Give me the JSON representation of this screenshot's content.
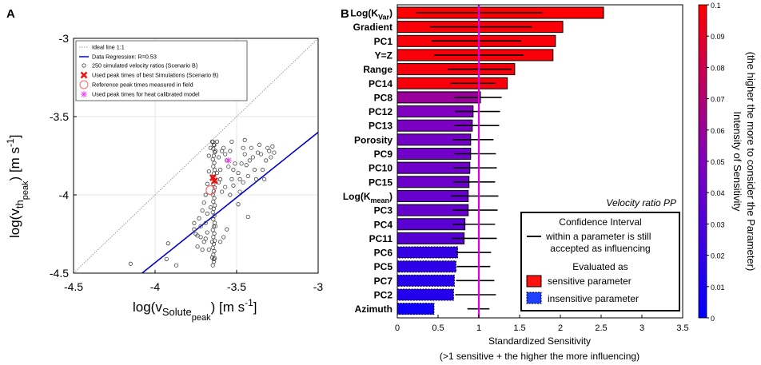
{
  "chart_data": [
    {
      "panel": "A",
      "type": "scatter",
      "xlabel": {
        "main": "log(v",
        "sub": "Solute",
        "subsub": "peak",
        "unit": ") [m s",
        "exp": "-1",
        "close": "]"
      },
      "ylabel": {
        "main": "log(v",
        "sub": "th",
        "subsub": "peak",
        "unit": ") [m s",
        "exp": "-1",
        "close": "]"
      },
      "xlim": [
        -4.5,
        -3
      ],
      "ylim": [
        -4.5,
        -3
      ],
      "xticks": [
        "-4.5",
        "-4",
        "-3.5",
        "-3"
      ],
      "yticks": [
        "-4.5",
        "-4",
        "-3.5",
        "-3"
      ],
      "grid": true,
      "legend_position": "top-left",
      "legend": [
        {
          "label": "Ideal line 1:1",
          "marker": "dotted-line",
          "color": "#999999"
        },
        {
          "label": "Data Regression: R=0.53",
          "marker": "line",
          "color": "#0000cc"
        },
        {
          "label": "250 simulated velocity ratios (Scenario B)",
          "marker": "circle",
          "color": "#444444"
        },
        {
          "label": "Used peak times of best Simulations (Scenario B)",
          "marker": "x",
          "color": "#ee1111"
        },
        {
          "label": "Reference peak times measured in field",
          "marker": "circle-large",
          "color": "#ff6666"
        },
        {
          "label": "Used peak times for heat calibrated model",
          "marker": "star",
          "color": "#ee44ee"
        }
      ],
      "ideal_line": {
        "x": [
          -4.5,
          -3
        ],
        "y": [
          -4.5,
          -3
        ]
      },
      "regression_line": {
        "x": [
          -4.08,
          -3
        ],
        "y": [
          -4.5,
          -3.6
        ]
      },
      "reference_point": {
        "x": -3.66,
        "y": -3.97
      },
      "best_sim_points": [
        {
          "x": -3.645,
          "y": -3.89
        },
        {
          "x": -3.635,
          "y": -3.91
        }
      ],
      "heat_point": {
        "x": -3.55,
        "y": -3.78
      },
      "scatter_points": [
        [
          -4.15,
          -4.44
        ],
        [
          -3.93,
          -4.41
        ],
        [
          -3.87,
          -4.45
        ],
        [
          -3.92,
          -4.31
        ],
        [
          -3.74,
          -4.33
        ],
        [
          -3.76,
          -4.18
        ],
        [
          -3.76,
          -4.22
        ],
        [
          -3.75,
          -4.25
        ],
        [
          -3.74,
          -4.26
        ],
        [
          -3.72,
          -4.2
        ],
        [
          -3.72,
          -4.27
        ],
        [
          -3.7,
          -4.3
        ],
        [
          -3.69,
          -4.18
        ],
        [
          -3.68,
          -4.24
        ],
        [
          -3.67,
          -4.35
        ],
        [
          -3.65,
          -4.4
        ],
        [
          -3.64,
          -4.41
        ],
        [
          -3.71,
          -4.1
        ],
        [
          -3.7,
          -4.05
        ],
        [
          -3.69,
          -4.0
        ],
        [
          -3.68,
          -3.93
        ],
        [
          -3.67,
          -3.85
        ],
        [
          -3.67,
          -3.75
        ],
        [
          -3.66,
          -3.7
        ],
        [
          -3.65,
          -3.66
        ],
        [
          -3.64,
          -3.68
        ],
        [
          -3.63,
          -3.72
        ],
        [
          -3.62,
          -3.66
        ],
        [
          -3.61,
          -3.76
        ],
        [
          -3.6,
          -3.84
        ],
        [
          -3.6,
          -3.9
        ],
        [
          -3.59,
          -3.72
        ],
        [
          -3.58,
          -3.7
        ],
        [
          -3.57,
          -3.74
        ],
        [
          -3.56,
          -3.78
        ],
        [
          -3.55,
          -3.82
        ],
        [
          -3.54,
          -3.72
        ],
        [
          -3.53,
          -3.9
        ],
        [
          -3.52,
          -3.84
        ],
        [
          -3.52,
          -3.94
        ],
        [
          -3.51,
          -3.8
        ],
        [
          -3.49,
          -3.86
        ],
        [
          -3.48,
          -3.9
        ],
        [
          -3.47,
          -3.8
        ],
        [
          -3.46,
          -3.7
        ],
        [
          -3.45,
          -3.74
        ],
        [
          -3.44,
          -3.81
        ],
        [
          -3.43,
          -3.88
        ],
        [
          -3.42,
          -3.78
        ],
        [
          -3.41,
          -3.7
        ],
        [
          -3.4,
          -3.76
        ],
        [
          -3.39,
          -3.84
        ],
        [
          -3.38,
          -3.9
        ],
        [
          -3.37,
          -3.73
        ],
        [
          -3.36,
          -3.68
        ],
        [
          -3.35,
          -3.74
        ],
        [
          -3.34,
          -3.84
        ],
        [
          -3.33,
          -3.9
        ],
        [
          -3.32,
          -3.78
        ],
        [
          -3.31,
          -3.7
        ],
        [
          -3.3,
          -3.72
        ],
        [
          -3.29,
          -3.76
        ],
        [
          -3.28,
          -3.69
        ],
        [
          -3.27,
          -3.73
        ],
        [
          -3.43,
          -4.14
        ],
        [
          -3.49,
          -4.06
        ],
        [
          -3.45,
          -3.65
        ],
        [
          -3.53,
          -3.66
        ],
        [
          -3.57,
          -3.95
        ],
        [
          -3.54,
          -4.0
        ],
        [
          -3.6,
          -4.3
        ],
        [
          -3.58,
          -4.27
        ],
        [
          -3.56,
          -4.22
        ],
        [
          -3.48,
          -3.98
        ],
        [
          -3.46,
          -3.92
        ],
        [
          -3.62,
          -3.86
        ],
        [
          -3.61,
          -3.92
        ],
        [
          -3.59,
          -3.98
        ],
        [
          -3.73,
          -4.15
        ],
        [
          -3.71,
          -4.35
        ],
        [
          -3.69,
          -4.28
        ],
        [
          -3.68,
          -4.12
        ],
        [
          -3.66,
          -4.08
        ],
        [
          -3.65,
          -4.3
        ],
        [
          -3.63,
          -4.2
        ]
      ],
      "vertical_cluster": {
        "x": -3.64,
        "y_from": -4.45,
        "y_to": -3.66,
        "count": 36
      }
    },
    {
      "panel": "B",
      "type": "bar",
      "orientation": "horizontal",
      "title_annotation": "Velocity ratio PP",
      "xlabel": "Standardized Sensitivity",
      "xlabel2": "(>1 sensitive + the higher the more influencing)",
      "xlim": [
        0,
        3.5
      ],
      "xticks": [
        "0",
        "0.5",
        "1",
        "1.5",
        "2",
        "2.5",
        "3",
        "3.5"
      ],
      "threshold": 1,
      "colorbar": {
        "label": "Intensity of Sensitivity",
        "label2": "(the higher the more to consider the Parameter)",
        "min": 0,
        "max": 0.1,
        "ticks": [
          "0",
          "0.01",
          "0.02",
          "0.03",
          "0.04",
          "0.05",
          "0.06",
          "0.07",
          "0.08",
          "0.09",
          "0.1"
        ]
      },
      "categories": [
        {
          "label": "Log(K",
          "sub": "Var",
          "close": ")"
        },
        {
          "label": "Gradient"
        },
        {
          "label": "PC1"
        },
        {
          "label": "Y=Z"
        },
        {
          "label": "Range"
        },
        {
          "label": "PC14"
        },
        {
          "label": "PC8"
        },
        {
          "label": "PC12"
        },
        {
          "label": "PC13"
        },
        {
          "label": "Porosity"
        },
        {
          "label": "PC9"
        },
        {
          "label": "PC10"
        },
        {
          "label": "PC15"
        },
        {
          "label": "Log(K",
          "sub": "mean",
          "close": ")"
        },
        {
          "label": "PC3"
        },
        {
          "label": "PC4"
        },
        {
          "label": "PC11"
        },
        {
          "label": "PC6"
        },
        {
          "label": "PC5"
        },
        {
          "label": "PC7"
        },
        {
          "label": "PC2"
        },
        {
          "label": "Azimuth"
        }
      ],
      "values": [
        2.53,
        2.03,
        1.94,
        1.91,
        1.44,
        1.35,
        1.02,
        0.93,
        0.92,
        0.9,
        0.9,
        0.89,
        0.88,
        0.87,
        0.87,
        0.83,
        0.82,
        0.74,
        0.72,
        0.7,
        0.69,
        0.45
      ],
      "ci_low": [
        0.23,
        0.4,
        0.42,
        0.45,
        0.62,
        0.65,
        0.7,
        0.71,
        0.7,
        0.68,
        0.7,
        0.69,
        0.69,
        0.66,
        0.68,
        0.68,
        0.67,
        0.71,
        0.73,
        0.72,
        0.71,
        0.86
      ],
      "ci_high": [
        1.78,
        1.65,
        1.52,
        1.55,
        1.4,
        1.2,
        1.28,
        1.26,
        1.25,
        1.18,
        1.21,
        1.22,
        1.2,
        1.24,
        1.23,
        1.2,
        1.22,
        1.15,
        1.14,
        1.19,
        1.21,
        1.13
      ],
      "intensity": [
        0.099,
        0.098,
        0.098,
        0.098,
        0.097,
        0.097,
        0.06,
        0.05,
        0.048,
        0.045,
        0.044,
        0.043,
        0.042,
        0.04,
        0.04,
        0.035,
        0.034,
        0.02,
        0.018,
        0.015,
        0.014,
        0.006
      ],
      "sensitive": [
        true,
        true,
        true,
        true,
        true,
        true,
        true,
        true,
        true,
        true,
        true,
        true,
        true,
        true,
        true,
        true,
        true,
        false,
        false,
        false,
        false,
        false
      ],
      "legend": {
        "ci_label": "Confidence Interval",
        "ci_label2": "within a parameter is still",
        "ci_label3": "accepted as influencing",
        "eval_label": "Evaluated as",
        "sensitive_label": "sensitive parameter",
        "insensitive_label": "insensitive parameter"
      }
    }
  ],
  "panel_letters": {
    "a": "A",
    "b": "B"
  },
  "colors": {
    "regression": "#0000cc",
    "threshold": "#dd00dd",
    "sensitive": "#ff1111",
    "insensitive": "#1f3fff"
  }
}
